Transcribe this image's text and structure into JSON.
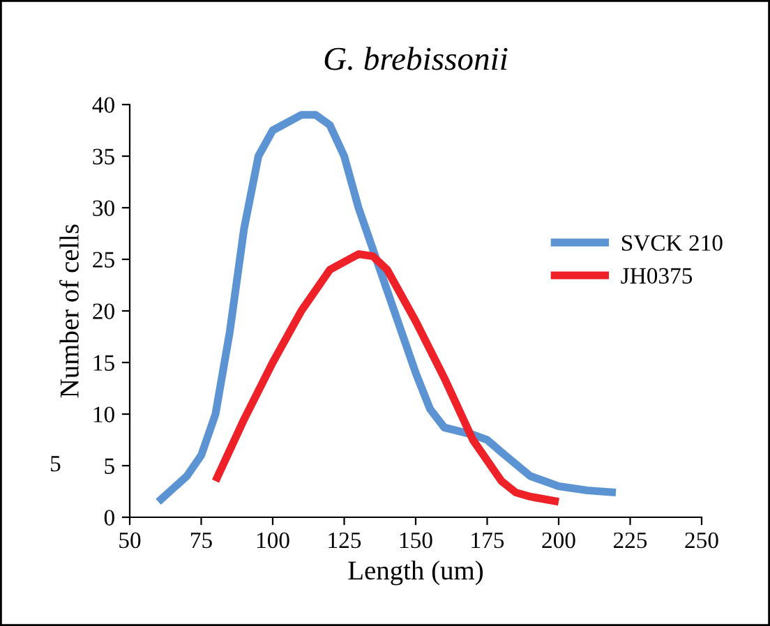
{
  "chart_data": {
    "type": "line",
    "title": "G. brebissonii",
    "xlabel": "Length (um)",
    "ylabel": "Number of cells",
    "annotations": [
      "5"
    ],
    "xlim": [
      50,
      250
    ],
    "xticks": [
      50,
      75,
      100,
      125,
      150,
      175,
      200,
      225,
      250
    ],
    "ylim": [
      0,
      40
    ],
    "yticks": [
      0,
      5,
      10,
      15,
      20,
      25,
      30,
      35,
      40
    ],
    "grid": false,
    "legend": "right",
    "marker": "none",
    "line_style": "solid",
    "series": [
      {
        "name": "SVCK 210",
        "color": "#5b93d3",
        "x": [
          60,
          70,
          75,
          80,
          85,
          90,
          95,
          100,
          110,
          115,
          120,
          125,
          130,
          140,
          150,
          155,
          160,
          170,
          175,
          180,
          190,
          200,
          210,
          220
        ],
        "values": [
          1.5,
          4,
          6,
          10,
          18,
          28,
          35,
          37.5,
          39,
          39,
          38,
          35,
          30,
          22,
          14,
          10.5,
          8.7,
          8,
          7.5,
          6.3,
          4,
          3,
          2.6,
          2.4
        ]
      },
      {
        "name": "JH0375",
        "color": "#ee2028",
        "x": [
          80,
          90,
          100,
          110,
          120,
          130,
          135,
          140,
          150,
          160,
          170,
          180,
          185,
          190,
          200
        ],
        "values": [
          3.5,
          9.5,
          15,
          20,
          24,
          25.5,
          25.3,
          24,
          19,
          13.5,
          7.5,
          3.5,
          2.4,
          2,
          1.5
        ]
      }
    ]
  }
}
